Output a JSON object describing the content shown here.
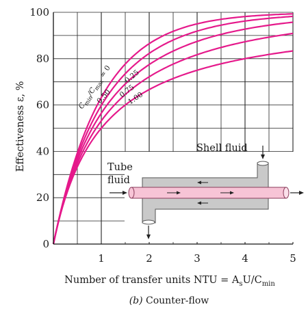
{
  "chart_data": {
    "type": "line",
    "xlabel": "Number of transfer units NTU = A",
    "xlabel_sub": "s",
    "xlabel_tail": "U/C",
    "xlabel_tail_sub": "min",
    "ylabel": "Effectiveness ε, %",
    "caption_prefix": "(b)",
    "caption_text": " Counter-flow",
    "xlim": [
      0,
      5
    ],
    "ylim": [
      0,
      100
    ],
    "x_ticks": [
      {
        "value": 1,
        "label": "1"
      },
      {
        "value": 2,
        "label": "2"
      },
      {
        "value": 3,
        "label": "3"
      },
      {
        "value": 4,
        "label": "4"
      },
      {
        "value": 5,
        "label": "5"
      }
    ],
    "y_ticks": [
      {
        "value": 0,
        "label": "0"
      },
      {
        "value": 20,
        "label": "20"
      },
      {
        "value": 40,
        "label": "40"
      },
      {
        "value": 60,
        "label": "60"
      },
      {
        "value": 80,
        "label": "80"
      },
      {
        "value": 100,
        "label": "100"
      }
    ],
    "grid": true,
    "line_color": "#e5198b",
    "ratio_label": "C",
    "ratio_label_sub1": "min",
    "ratio_label_mid": "/C",
    "ratio_label_sub2": "max",
    "ratio_label_tail": " = 0",
    "series": [
      {
        "name": "0",
        "label": "",
        "x": [
          0,
          0.25,
          0.5,
          0.75,
          1,
          1.5,
          2,
          2.5,
          3,
          3.5,
          4,
          4.5,
          5
        ],
        "values": [
          0,
          22.1,
          39.3,
          52.8,
          63.2,
          77.7,
          86.5,
          91.8,
          95.0,
          97.0,
          98.2,
          98.9,
          99.3
        ]
      },
      {
        "name": "0.25",
        "label": "0.25",
        "x": [
          0,
          0.25,
          0.5,
          0.75,
          1,
          1.5,
          2,
          2.5,
          3,
          3.5,
          4,
          4.5,
          5
        ],
        "values": [
          0,
          21.3,
          36.7,
          48.5,
          57.6,
          70.5,
          79.2,
          85.1,
          89.2,
          92.1,
          94.1,
          95.6,
          96.7
        ]
      },
      {
        "name": "0.50",
        "label": "0.50",
        "x": [
          0,
          0.25,
          0.5,
          0.75,
          1,
          1.5,
          2,
          2.5,
          3,
          3.5,
          4,
          4.5,
          5
        ],
        "values": [
          0,
          20.6,
          34.6,
          44.9,
          52.7,
          63.9,
          71.8,
          77.5,
          81.9,
          85.1,
          87.7,
          89.6,
          91.2
        ]
      },
      {
        "name": "0.75",
        "label": "0.75",
        "x": [
          0,
          0.25,
          0.5,
          0.75,
          1,
          1.5,
          2,
          2.5,
          3,
          3.5,
          4,
          4.5,
          5
        ],
        "values": [
          0,
          20.0,
          32.7,
          41.7,
          48.5,
          58.1,
          64.7,
          69.7,
          73.6,
          76.7,
          79.2,
          81.3,
          83.0
        ]
      },
      {
        "name": "1.00",
        "label": "1.00",
        "x": [
          0,
          0.25,
          0.5,
          0.75,
          1,
          1.5,
          2,
          2.5,
          3,
          3.5,
          4,
          4.5,
          5
        ],
        "values": [
          0,
          20.0,
          33.3,
          42.9,
          50.0,
          60.0,
          66.7,
          71.4,
          75.0,
          77.8,
          80.0,
          81.8,
          83.3
        ]
      }
    ],
    "annotations": {
      "shell_fluid": "Shell fluid",
      "tube_fluid_line1": "Tube",
      "tube_fluid_line2": "fluid"
    }
  }
}
